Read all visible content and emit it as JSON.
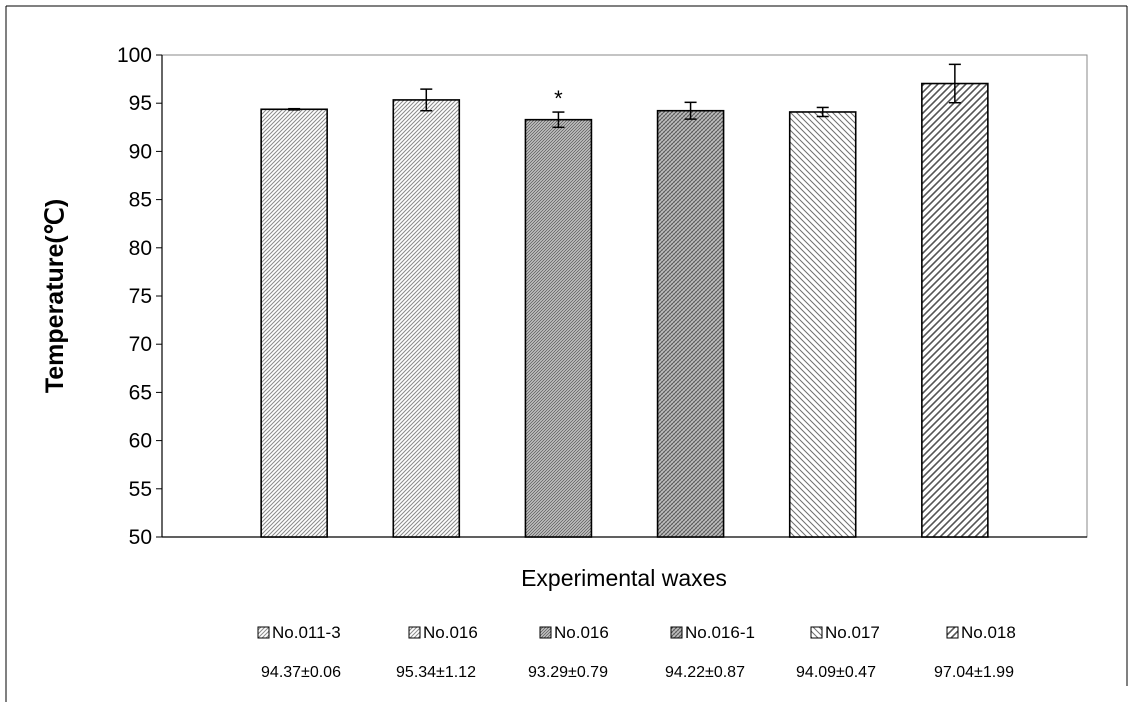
{
  "chart_data": {
    "type": "bar",
    "title": "",
    "xlabel": "Experimental waxes",
    "ylabel": "Temperature(℃)",
    "ylim": [
      50,
      100
    ],
    "ytick_step": 5,
    "grid": false,
    "legend_position": "bottom",
    "categories": [
      "No.011-3",
      "No.016",
      "No.016",
      "No.016-1",
      "No.017",
      "No.018"
    ],
    "values": [
      94.37,
      95.34,
      93.29,
      94.22,
      94.09,
      97.04
    ],
    "errors": [
      0.06,
      1.12,
      0.79,
      0.87,
      0.47,
      1.99
    ],
    "value_labels": [
      "94.37±0.06",
      "95.34±1.12",
      "93.29±0.79",
      "94.22±0.87",
      "94.09±0.47",
      "97.04±1.99"
    ],
    "patterns": [
      "fine-diag-light",
      "fine-diag-light",
      "fine-diag-dark",
      "grid-dark",
      "wide-diag",
      "wide-diag-bold"
    ],
    "annotations": [
      {
        "category_index": 2,
        "text": "*"
      }
    ]
  }
}
